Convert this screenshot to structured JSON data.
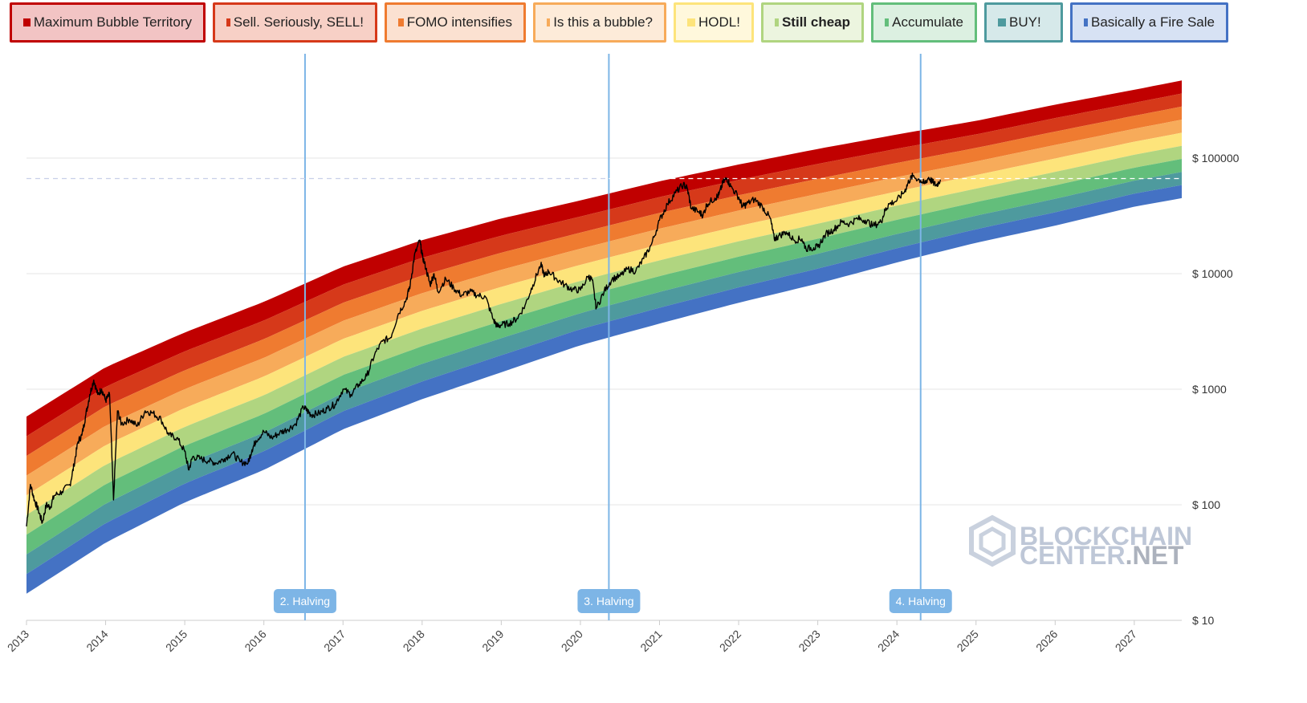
{
  "legend": [
    {
      "label": "Maximum Bubble Territory",
      "color": "#c00000",
      "bg": "#f2c4c4",
      "border": "#c00000",
      "width": 244
    },
    {
      "label": "Sell. Seriously, SELL!",
      "color": "#d6391a",
      "bg": "#f7d0c6",
      "border": "#d6391a",
      "width": 205
    },
    {
      "label": "FOMO intensifies",
      "color": "#ef7b30",
      "bg": "#fbe1d1",
      "border": "#ef7b30",
      "width": 176
    },
    {
      "label": "Is this a bubble?",
      "color": "#f7ab5a",
      "bg": "#fdebd9",
      "border": "#f7ab5a",
      "width": 166
    },
    {
      "label": "HODL!",
      "color": "#fde47b",
      "bg": "#fff8dc",
      "border": "#fde47b",
      "width": 100
    },
    {
      "label": "Still cheap",
      "color": "#b0d580",
      "bg": "#ecf5df",
      "border": "#b0d580",
      "width": 128,
      "bold": true
    },
    {
      "label": "Accumulate",
      "color": "#63be7b",
      "bg": "#dcf0e1",
      "border": "#63be7b",
      "width": 132
    },
    {
      "label": "BUY!",
      "color": "#4e9a9e",
      "bg": "#d6e9ea",
      "border": "#4e9a9e",
      "width": 98
    },
    {
      "label": "Basically a Fire Sale",
      "color": "#4472c4",
      "bg": "#d7e2f4",
      "border": "#4472c4",
      "width": 197
    }
  ],
  "watermark": {
    "line1": "BLOCKCHAIN",
    "line2": "CENTER",
    "line2_suffix": ".NET"
  },
  "chart_data": {
    "type": "area",
    "yscale": "log",
    "ylim": [
      10,
      1000000
    ],
    "xlim": [
      2013.0,
      2027.6
    ],
    "y_ticks": [
      {
        "v": 10,
        "label": "$ 10"
      },
      {
        "v": 100,
        "label": "$ 100"
      },
      {
        "v": 1000,
        "label": "$ 1000"
      },
      {
        "v": 10000,
        "label": "$ 10000"
      },
      {
        "v": 100000,
        "label": "$ 100000"
      }
    ],
    "x_ticks": [
      "2013",
      "2014",
      "2015",
      "2016",
      "2017",
      "2018",
      "2019",
      "2020",
      "2021",
      "2022",
      "2023",
      "2024",
      "2025",
      "2026",
      "2027"
    ],
    "bands": [
      {
        "name": "Maximum Bubble Territory",
        "color": "#c00000"
      },
      {
        "name": "Sell. Seriously, SELL!",
        "color": "#d6391a"
      },
      {
        "name": "FOMO intensifies",
        "color": "#ef7b30"
      },
      {
        "name": "Is this a bubble?",
        "color": "#f7ab5a"
      },
      {
        "name": "HODL!",
        "color": "#fde47b"
      },
      {
        "name": "Still cheap",
        "color": "#b0d580"
      },
      {
        "name": "Accumulate",
        "color": "#63be7b"
      },
      {
        "name": "BUY!",
        "color": "#4e9a9e"
      },
      {
        "name": "Basically a Fire Sale",
        "color": "#4472c4"
      }
    ],
    "band_boundaries": [
      {
        "x": 2013.0,
        "top": 580,
        "bottom": 17
      },
      {
        "x": 2014.0,
        "top": 1550,
        "bottom": 47
      },
      {
        "x": 2015.0,
        "top": 3100,
        "bottom": 105
      },
      {
        "x": 2016.0,
        "top": 5700,
        "bottom": 200
      },
      {
        "x": 2017.0,
        "top": 11500,
        "bottom": 450
      },
      {
        "x": 2018.0,
        "top": 19500,
        "bottom": 820
      },
      {
        "x": 2019.0,
        "top": 30000,
        "bottom": 1400
      },
      {
        "x": 2020.0,
        "top": 43000,
        "bottom": 2400
      },
      {
        "x": 2021.0,
        "top": 63000,
        "bottom": 3700
      },
      {
        "x": 2022.0,
        "top": 88000,
        "bottom": 5600
      },
      {
        "x": 2023.0,
        "top": 120000,
        "bottom": 8200
      },
      {
        "x": 2024.0,
        "top": 160000,
        "bottom": 12500
      },
      {
        "x": 2025.0,
        "top": 210000,
        "bottom": 18500
      },
      {
        "x": 2026.0,
        "top": 290000,
        "bottom": 26000
      },
      {
        "x": 2027.0,
        "top": 390000,
        "bottom": 38000
      },
      {
        "x": 2027.6,
        "top": 470000,
        "bottom": 45000
      }
    ],
    "price_series": [
      [
        2013.0,
        65
      ],
      [
        2013.05,
        150
      ],
      [
        2013.1,
        110
      ],
      [
        2013.15,
        90
      ],
      [
        2013.2,
        70
      ],
      [
        2013.25,
        100
      ],
      [
        2013.3,
        95
      ],
      [
        2013.35,
        120
      ],
      [
        2013.45,
        130
      ],
      [
        2013.55,
        150
      ],
      [
        2013.6,
        220
      ],
      [
        2013.65,
        350
      ],
      [
        2013.7,
        400
      ],
      [
        2013.75,
        600
      ],
      [
        2013.8,
        900
      ],
      [
        2013.85,
        1200
      ],
      [
        2013.9,
        900
      ],
      [
        2013.95,
        1000
      ],
      [
        2014.0,
        800
      ],
      [
        2014.05,
        900
      ],
      [
        2014.1,
        110
      ],
      [
        2014.15,
        650
      ],
      [
        2014.2,
        500
      ],
      [
        2014.3,
        550
      ],
      [
        2014.4,
        480
      ],
      [
        2014.5,
        650
      ],
      [
        2014.6,
        620
      ],
      [
        2014.7,
        550
      ],
      [
        2014.8,
        400
      ],
      [
        2014.9,
        380
      ],
      [
        2015.0,
        290
      ],
      [
        2015.05,
        200
      ],
      [
        2015.1,
        260
      ],
      [
        2015.2,
        250
      ],
      [
        2015.3,
        240
      ],
      [
        2015.4,
        230
      ],
      [
        2015.5,
        250
      ],
      [
        2015.6,
        280
      ],
      [
        2015.7,
        235
      ],
      [
        2015.8,
        230
      ],
      [
        2015.85,
        300
      ],
      [
        2015.9,
        360
      ],
      [
        2016.0,
        430
      ],
      [
        2016.1,
        380
      ],
      [
        2016.2,
        420
      ],
      [
        2016.3,
        450
      ],
      [
        2016.4,
        500
      ],
      [
        2016.5,
        700
      ],
      [
        2016.55,
        650
      ],
      [
        2016.6,
        600
      ],
      [
        2016.7,
        620
      ],
      [
        2016.8,
        680
      ],
      [
        2016.9,
        740
      ],
      [
        2017.0,
        1000
      ],
      [
        2017.1,
        900
      ],
      [
        2017.2,
        1100
      ],
      [
        2017.3,
        1300
      ],
      [
        2017.4,
        2000
      ],
      [
        2017.5,
        2600
      ],
      [
        2017.6,
        2800
      ],
      [
        2017.7,
        4500
      ],
      [
        2017.8,
        6000
      ],
      [
        2017.85,
        8000
      ],
      [
        2017.9,
        14000
      ],
      [
        2017.97,
        19500
      ],
      [
        2018.0,
        14500
      ],
      [
        2018.05,
        11000
      ],
      [
        2018.1,
        8000
      ],
      [
        2018.15,
        10000
      ],
      [
        2018.2,
        7000
      ],
      [
        2018.3,
        9000
      ],
      [
        2018.4,
        7500
      ],
      [
        2018.5,
        6500
      ],
      [
        2018.6,
        7000
      ],
      [
        2018.7,
        6500
      ],
      [
        2018.8,
        6300
      ],
      [
        2018.9,
        4000
      ],
      [
        2018.95,
        3500
      ],
      [
        2019.0,
        3600
      ],
      [
        2019.1,
        3700
      ],
      [
        2019.2,
        4100
      ],
      [
        2019.3,
        5300
      ],
      [
        2019.4,
        8000
      ],
      [
        2019.5,
        12000
      ],
      [
        2019.55,
        9500
      ],
      [
        2019.6,
        10500
      ],
      [
        2019.7,
        9000
      ],
      [
        2019.8,
        8000
      ],
      [
        2019.9,
        7300
      ],
      [
        2020.0,
        7200
      ],
      [
        2020.1,
        9500
      ],
      [
        2020.15,
        8800
      ],
      [
        2020.2,
        5000
      ],
      [
        2020.3,
        7000
      ],
      [
        2020.4,
        9000
      ],
      [
        2020.5,
        9500
      ],
      [
        2020.6,
        11000
      ],
      [
        2020.7,
        10500
      ],
      [
        2020.8,
        13500
      ],
      [
        2020.9,
        18000
      ],
      [
        2021.0,
        29000
      ],
      [
        2021.1,
        40000
      ],
      [
        2021.2,
        50000
      ],
      [
        2021.3,
        59000
      ],
      [
        2021.35,
        55000
      ],
      [
        2021.4,
        37000
      ],
      [
        2021.5,
        34000
      ],
      [
        2021.55,
        32000
      ],
      [
        2021.6,
        40000
      ],
      [
        2021.7,
        45000
      ],
      [
        2021.75,
        48000
      ],
      [
        2021.8,
        61000
      ],
      [
        2021.85,
        67000
      ],
      [
        2021.9,
        57000
      ],
      [
        2022.0,
        46000
      ],
      [
        2022.05,
        38000
      ],
      [
        2022.1,
        40000
      ],
      [
        2022.2,
        44000
      ],
      [
        2022.3,
        38000
      ],
      [
        2022.4,
        30000
      ],
      [
        2022.45,
        20000
      ],
      [
        2022.5,
        21000
      ],
      [
        2022.6,
        23000
      ],
      [
        2022.7,
        19500
      ],
      [
        2022.8,
        20000
      ],
      [
        2022.85,
        16500
      ],
      [
        2022.95,
        16800
      ],
      [
        2023.0,
        17000
      ],
      [
        2023.1,
        22000
      ],
      [
        2023.2,
        24000
      ],
      [
        2023.3,
        28000
      ],
      [
        2023.4,
        27000
      ],
      [
        2023.5,
        30000
      ],
      [
        2023.6,
        29000
      ],
      [
        2023.7,
        26000
      ],
      [
        2023.8,
        28000
      ],
      [
        2023.85,
        35000
      ],
      [
        2023.9,
        40000
      ],
      [
        2024.0,
        43000
      ],
      [
        2024.1,
        52000
      ],
      [
        2024.15,
        63000
      ],
      [
        2024.2,
        70000
      ],
      [
        2024.3,
        64000
      ],
      [
        2024.35,
        60000
      ],
      [
        2024.4,
        68000
      ],
      [
        2024.45,
        62000
      ],
      [
        2024.5,
        58000
      ],
      [
        2024.55,
        65000
      ]
    ],
    "current_price_line": 66500,
    "halvings": [
      {
        "x": 2016.52,
        "label": "2. Halving"
      },
      {
        "x": 2020.36,
        "label": "3. Halving"
      },
      {
        "x": 2024.3,
        "label": "4. Halving"
      }
    ]
  }
}
